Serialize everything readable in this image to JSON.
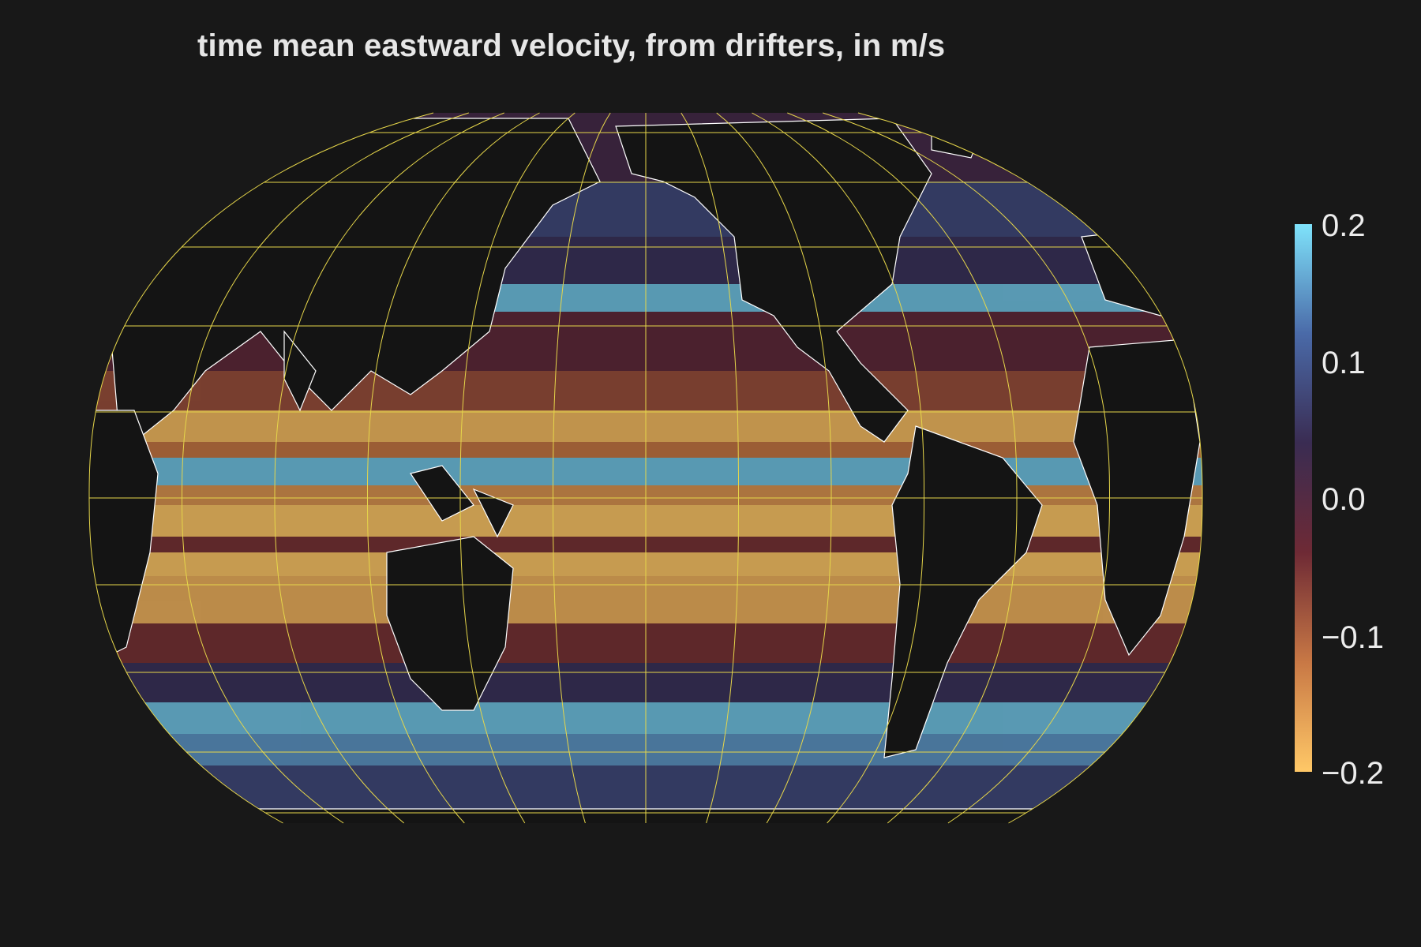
{
  "title": "time mean eastward velocity, from drifters, in m/s",
  "colorbar": {
    "min": -0.2,
    "max": 0.2,
    "ticks": [
      "0.2",
      "0.1",
      "0.0",
      "−0.1",
      "−0.2"
    ],
    "colors": [
      "#ffc867",
      "#c87845",
      "#6e2a35",
      "#3a2c52",
      "#4a6aa8",
      "#7fe3fb"
    ]
  },
  "map": {
    "projection": "Robinson",
    "background": "#181818",
    "land_color": "#141414",
    "coastline_color": "#ffffff",
    "graticule_color": "#e6d64a"
  }
}
